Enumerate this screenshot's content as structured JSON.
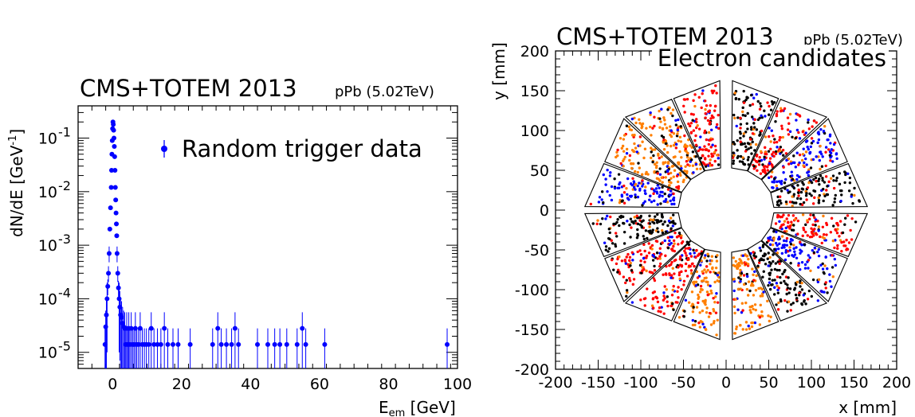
{
  "left_panel": {
    "title": "CMS+TOTEM 2013",
    "subtitle": "pPb (5.02TeV)",
    "legend_label": "Random trigger data",
    "xlabel_main": "E",
    "xlabel_sub": "em",
    "xlabel_unit": " [GeV]",
    "ylabel_main": "dN/dE [GeV",
    "ylabel_sup": "-1",
    "ylabel_end": "]"
  },
  "right_panel": {
    "title": "CMS+TOTEM 2013",
    "subtitle": "pPb (5.02TeV)",
    "annotation": "Electron candidates",
    "xlabel": "x [mm]",
    "ylabel": "y [mm]"
  },
  "colors": {
    "marker": "#0000ff",
    "red": "#ff0000",
    "orange": "#ff7f00",
    "black": "#000000",
    "blue": "#0000ff"
  },
  "chart_data": [
    {
      "type": "scatter",
      "title": "CMS+TOTEM 2013",
      "subtitle": "pPb (5.02TeV)",
      "xlabel": "E_em [GeV]",
      "ylabel": "dN/dE [GeV^-1]",
      "xlim": [
        -10,
        100
      ],
      "ylim": [
        5e-06,
        0.4
      ],
      "yscale": "log",
      "x_ticks": [
        0,
        20,
        40,
        60,
        80,
        100
      ],
      "y_ticks": [
        {
          "value": 1e-05,
          "base": "10",
          "exp": "-5"
        },
        {
          "value": 0.0001,
          "base": "10",
          "exp": "-4"
        },
        {
          "value": 0.001,
          "base": "10",
          "exp": "-3"
        },
        {
          "value": 0.01,
          "base": "10",
          "exp": "-2"
        },
        {
          "value": 0.1,
          "base": "10",
          "exp": "-1"
        }
      ],
      "legend": "top-right",
      "series": [
        {
          "name": "Random trigger data",
          "points": [
            [
              -2.2,
              1.4e-05
            ],
            [
              -2.0,
              3e-05
            ],
            [
              -1.8,
              5e-05
            ],
            [
              -1.6,
              0.0001
            ],
            [
              -1.4,
              0.00017
            ],
            [
              -1.2,
              0.0003
            ],
            [
              -1.0,
              0.0007
            ],
            [
              -0.8,
              0.002
            ],
            [
              -0.6,
              0.005
            ],
            [
              -0.4,
              0.012
            ],
            [
              -0.3,
              0.025
            ],
            [
              -0.2,
              0.05
            ],
            [
              -0.1,
              0.09
            ],
            [
              0.0,
              0.15
            ],
            [
              0.1,
              0.2
            ],
            [
              0.2,
              0.18
            ],
            [
              0.3,
              0.14
            ],
            [
              0.4,
              0.1
            ],
            [
              0.5,
              0.07
            ],
            [
              0.6,
              0.045
            ],
            [
              0.7,
              0.025
            ],
            [
              0.8,
              0.012
            ],
            [
              0.9,
              0.007
            ],
            [
              1.0,
              0.004
            ],
            [
              1.1,
              0.0025
            ],
            [
              1.2,
              0.0015
            ],
            [
              1.3,
              0.0007
            ],
            [
              1.5,
              0.0003
            ],
            [
              1.7,
              0.00016
            ],
            [
              1.9,
              0.0001
            ],
            [
              2.1,
              7e-05
            ],
            [
              2.3,
              5e-05
            ],
            [
              2.6,
              4.5e-05
            ],
            [
              2.9,
              3.5e-05
            ],
            [
              3.2,
              3e-05
            ],
            [
              3.5,
              2.8e-05
            ],
            [
              3.8,
              1.4e-05
            ],
            [
              4.1,
              2.8e-05
            ],
            [
              4.4,
              1.4e-05
            ],
            [
              4.7,
              2.8e-05
            ],
            [
              5.0,
              1.4e-05
            ],
            [
              5.4,
              2.8e-05
            ],
            [
              5.8,
              1.4e-05
            ],
            [
              6.2,
              1.4e-05
            ],
            [
              6.6,
              2.8e-05
            ],
            [
              7.0,
              1.4e-05
            ],
            [
              7.5,
              1.4e-05
            ],
            [
              8.0,
              2.8e-05
            ],
            [
              8.6,
              1.4e-05
            ],
            [
              9.2,
              1.4e-05
            ],
            [
              9.8,
              1.4e-05
            ],
            [
              10.5,
              1.4e-05
            ],
            [
              11.2,
              2.8e-05
            ],
            [
              12.0,
              1.4e-05
            ],
            [
              13.0,
              1.4e-05
            ],
            [
              14.0,
              1.4e-05
            ],
            [
              15.0,
              2.8e-05
            ],
            [
              16.0,
              1.4e-05
            ],
            [
              17.5,
              1.4e-05
            ],
            [
              19.0,
              1.4e-05
            ],
            [
              22.5,
              1.4e-05
            ],
            [
              29.0,
              1.4e-05
            ],
            [
              30.5,
              2.8e-05
            ],
            [
              31.5,
              1.4e-05
            ],
            [
              33.0,
              1.4e-05
            ],
            [
              34.5,
              1.4e-05
            ],
            [
              35.5,
              2.8e-05
            ],
            [
              36.5,
              1.4e-05
            ],
            [
              42.0,
              1.4e-05
            ],
            [
              45.0,
              1.4e-05
            ],
            [
              47.0,
              1.4e-05
            ],
            [
              48.5,
              1.4e-05
            ],
            [
              50.5,
              1.4e-05
            ],
            [
              53.5,
              1.4e-05
            ],
            [
              55.0,
              2.8e-05
            ],
            [
              56.0,
              1.4e-05
            ],
            [
              61.5,
              1.4e-05
            ],
            [
              97.0,
              1.4e-05
            ]
          ]
        }
      ]
    },
    {
      "type": "scatter",
      "title": "CMS+TOTEM 2013",
      "subtitle": "pPb (5.02TeV)",
      "annotation": "Electron candidates",
      "xlabel": "x [mm]",
      "ylabel": "y [mm]",
      "xlim": [
        -200,
        200
      ],
      "ylim": [
        -200,
        200
      ],
      "x_ticks": [
        -200,
        -150,
        -100,
        -50,
        0,
        50,
        100,
        150,
        200
      ],
      "y_ticks": [
        -200,
        -150,
        -100,
        -50,
        0,
        50,
        100,
        150,
        200
      ],
      "detector": {
        "inner_radius_mm": 50,
        "outer_apothem_mm": 148,
        "sectors": 8,
        "subdivisions_per_sector": 2,
        "vertical_gap_mm": 6,
        "horizontal_gap_mm": 3
      },
      "segment_colors": [
        "black",
        "blue",
        "red",
        "black",
        "red",
        "orange",
        "orange",
        "blue",
        "black",
        "red",
        "red",
        "orange",
        "orange",
        "black",
        "blue",
        "red"
      ],
      "fill_colors": [
        "red",
        "orange",
        "black",
        "blue"
      ]
    }
  ]
}
